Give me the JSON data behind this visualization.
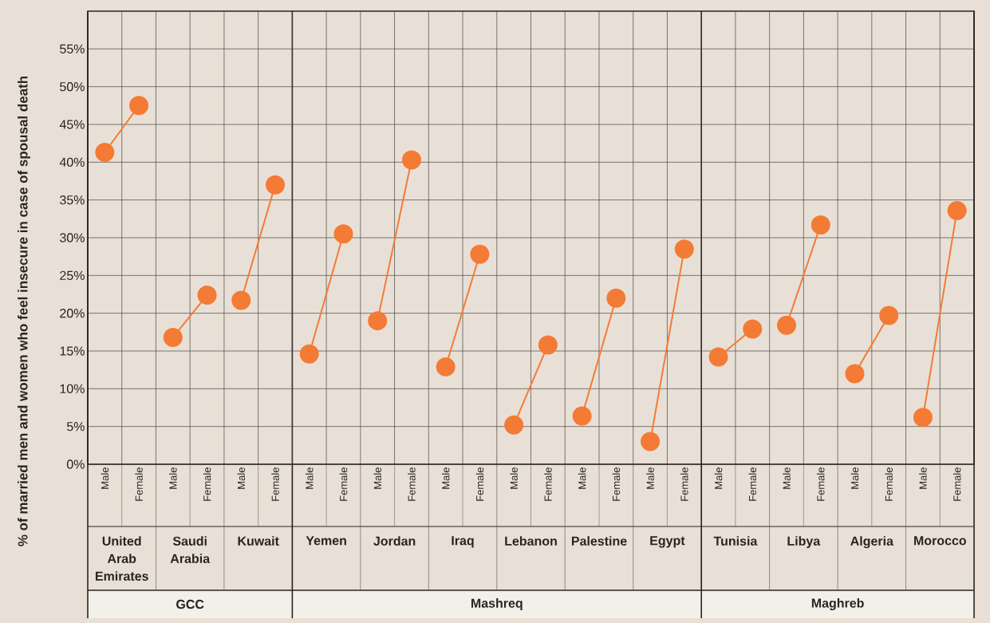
{
  "chart_data": {
    "type": "line",
    "ylabel": "% of married men and women who feel insecure in case of spousal death",
    "categories": [
      "Male",
      "Female",
      "Male",
      "Female",
      "Male",
      "Female",
      "Male",
      "Female",
      "Male",
      "Female",
      "Male",
      "Female",
      "Male",
      "Female",
      "Male",
      "Female",
      "Male",
      "Female",
      "Male",
      "Female",
      "Male",
      "Female",
      "Male",
      "Female",
      "Male",
      "Female"
    ],
    "series": [
      {
        "color": "#f47b35",
        "values": [
          41.3,
          47.5,
          null,
          null,
          null,
          null,
          null,
          null,
          null,
          null,
          null,
          null,
          null,
          null,
          null,
          null,
          null,
          null,
          null,
          null,
          null,
          null,
          null,
          null,
          null,
          null
        ]
      },
      {
        "color": "#f47b35",
        "values": [
          null,
          null,
          16.8,
          22.4,
          null,
          null,
          null,
          null,
          null,
          null,
          null,
          null,
          null,
          null,
          null,
          null,
          null,
          null,
          null,
          null,
          null,
          null,
          null,
          null,
          null,
          null
        ]
      },
      {
        "color": "#f47b35",
        "values": [
          null,
          null,
          null,
          null,
          21.7,
          37.0,
          null,
          null,
          null,
          null,
          null,
          null,
          null,
          null,
          null,
          null,
          null,
          null,
          null,
          null,
          null,
          null,
          null,
          null,
          null,
          null
        ]
      },
      {
        "color": "#f47b35",
        "values": [
          null,
          null,
          null,
          null,
          null,
          null,
          14.6,
          30.5,
          null,
          null,
          null,
          null,
          null,
          null,
          null,
          null,
          null,
          null,
          null,
          null,
          null,
          null,
          null,
          null,
          null,
          null
        ]
      },
      {
        "color": "#f47b35",
        "values": [
          null,
          null,
          null,
          null,
          null,
          null,
          null,
          null,
          19.0,
          40.3,
          null,
          null,
          null,
          null,
          null,
          null,
          null,
          null,
          null,
          null,
          null,
          null,
          null,
          null,
          null,
          null
        ]
      },
      {
        "color": "#f47b35",
        "values": [
          null,
          null,
          null,
          null,
          null,
          null,
          null,
          null,
          null,
          null,
          12.9,
          27.8,
          null,
          null,
          null,
          null,
          null,
          null,
          null,
          null,
          null,
          null,
          null,
          null,
          null,
          null
        ]
      },
      {
        "color": "#f47b35",
        "values": [
          null,
          null,
          null,
          null,
          null,
          null,
          null,
          null,
          null,
          null,
          null,
          null,
          5.2,
          15.8,
          null,
          null,
          null,
          null,
          null,
          null,
          null,
          null,
          null,
          null,
          null,
          null
        ]
      },
      {
        "color": "#f47b35",
        "values": [
          null,
          null,
          null,
          null,
          null,
          null,
          null,
          null,
          null,
          null,
          null,
          null,
          null,
          null,
          6.4,
          22.0,
          null,
          null,
          null,
          null,
          null,
          null,
          null,
          null,
          null,
          null
        ]
      },
      {
        "color": "#f47b35",
        "values": [
          null,
          null,
          null,
          null,
          null,
          null,
          null,
          null,
          null,
          null,
          null,
          null,
          null,
          null,
          null,
          null,
          3.0,
          28.5,
          null,
          null,
          null,
          null,
          null,
          null,
          null,
          null
        ]
      },
      {
        "color": "#f47b35",
        "values": [
          null,
          null,
          null,
          null,
          null,
          null,
          null,
          null,
          null,
          null,
          null,
          null,
          null,
          null,
          null,
          null,
          null,
          null,
          14.2,
          17.9,
          null,
          null,
          null,
          null,
          null,
          null
        ]
      },
      {
        "color": "#f47b35",
        "values": [
          null,
          null,
          null,
          null,
          null,
          null,
          null,
          null,
          null,
          null,
          null,
          null,
          null,
          null,
          null,
          null,
          null,
          null,
          null,
          null,
          18.4,
          31.7,
          null,
          null,
          null,
          null
        ]
      },
      {
        "color": "#f47b35",
        "values": [
          null,
          null,
          null,
          null,
          null,
          null,
          null,
          null,
          null,
          null,
          null,
          null,
          null,
          null,
          null,
          null,
          null,
          null,
          null,
          null,
          null,
          null,
          12.0,
          19.7,
          null,
          null
        ]
      },
      {
        "color": "#f47b35",
        "values": [
          null,
          null,
          null,
          null,
          null,
          null,
          null,
          null,
          null,
          null,
          null,
          null,
          null,
          null,
          null,
          null,
          null,
          null,
          null,
          null,
          null,
          null,
          null,
          null,
          6.2,
          33.6
        ]
      }
    ],
    "annotations": [
      "United Arab Emirates",
      "Saudi Arabia",
      "Kuwait",
      "Yemen",
      "Jordan",
      "Iraq",
      "Lebanon",
      "Palestine",
      "Egypt",
      "Tunisia",
      "Libya",
      "Algeria",
      "Morocco",
      "GCC",
      "Mashreq",
      "Maghreb"
    ],
    "ylim": [
      0,
      60
    ],
    "yticks": [
      {
        "value": 0,
        "label": "0%"
      },
      {
        "value": 5,
        "label": "5%"
      },
      {
        "value": 10,
        "label": "10%"
      },
      {
        "value": 15,
        "label": "15%"
      },
      {
        "value": 20,
        "label": "20%"
      },
      {
        "value": 25,
        "label": "25%"
      },
      {
        "value": 30,
        "label": "30%"
      },
      {
        "value": 35,
        "label": "35%"
      },
      {
        "value": 40,
        "label": "40%"
      },
      {
        "value": 45,
        "label": "45%"
      },
      {
        "value": 50,
        "label": "50%"
      },
      {
        "value": 55,
        "label": "55%"
      }
    ],
    "grid": true,
    "marker": "circle"
  }
}
